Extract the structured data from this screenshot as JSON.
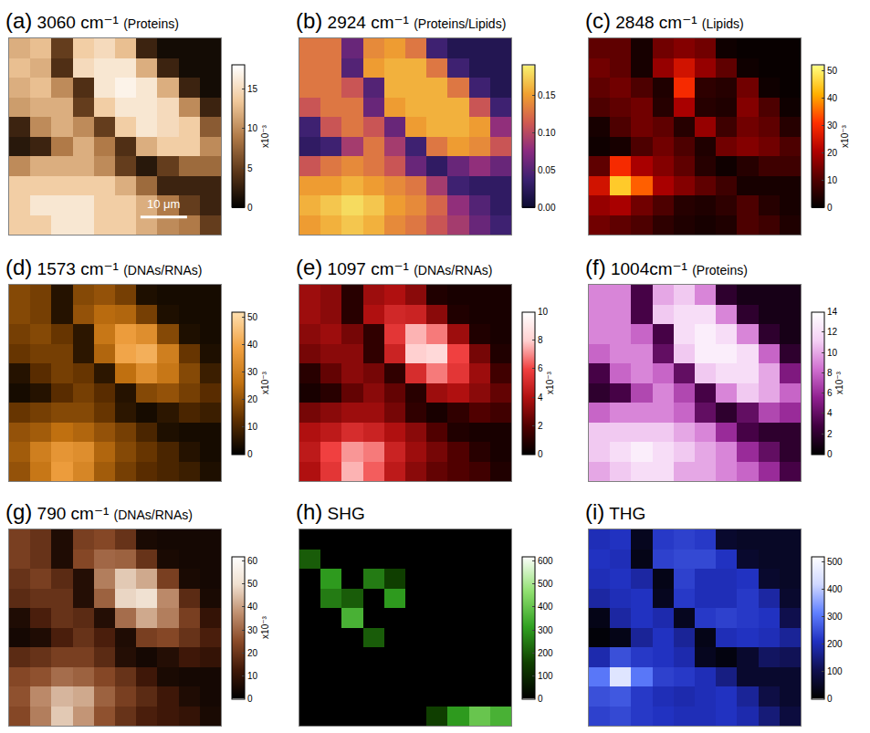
{
  "chart_data": [
    {
      "type": "heatmap",
      "label": "(a)",
      "title": "3060 cm⁻¹",
      "subtitle": "(Proteins)",
      "colorbar_title": "x10⁻³",
      "colorbar_range": [
        0,
        18
      ],
      "colorbar_ticks": [
        0,
        5,
        10,
        15
      ],
      "tick_labels": false,
      "color": [
        "#000000",
        "#5a3518",
        "#b07a48",
        "#f0c89a",
        "#ffffff"
      ],
      "annotations": [
        {
          "text": "10 μm"
        }
      ],
      "cells": [
        [
          12,
          13,
          5,
          14,
          15,
          13,
          3,
          1,
          1,
          1
        ],
        [
          13,
          12,
          4,
          15,
          16,
          16,
          12,
          3,
          1,
          1
        ],
        [
          12,
          13,
          10,
          4,
          16,
          17,
          16,
          12,
          3,
          1
        ],
        [
          11,
          12,
          12,
          5,
          14,
          16,
          16,
          15,
          10,
          3
        ],
        [
          3,
          10,
          12,
          10,
          5,
          14,
          16,
          15,
          14,
          7
        ],
        [
          2,
          3,
          9,
          12,
          9,
          4,
          12,
          14,
          14,
          10
        ],
        [
          10,
          12,
          12,
          12,
          10,
          5,
          2,
          5,
          8,
          8
        ],
        [
          14,
          14,
          14,
          14,
          14,
          12,
          8,
          3,
          3,
          3
        ],
        [
          14,
          16,
          16,
          16,
          14,
          14,
          12,
          9,
          5,
          3
        ],
        [
          14,
          14,
          16,
          16,
          14,
          14,
          12,
          10,
          9,
          5
        ]
      ]
    },
    {
      "type": "heatmap",
      "label": "(b)",
      "title": "2924 cm⁻¹",
      "subtitle": "(Proteins/Lipids)",
      "colorbar_range": [
        0,
        0.19
      ],
      "colorbar_ticks": [
        {
          "value": 0,
          "label": "0.00"
        },
        {
          "value": 0.05,
          "label": "0.05"
        },
        {
          "value": 0.1,
          "label": "0.10"
        },
        {
          "value": 0.15,
          "label": "0.15"
        }
      ],
      "tick_labels": false,
      "color": [
        "#0a0a30",
        "#3a2070",
        "#8a2a80",
        "#d05a50",
        "#f0a030",
        "#f8f070"
      ],
      "cells": [
        [
          0.13,
          0.13,
          0.06,
          0.14,
          0.15,
          0.13,
          0.04,
          0.02,
          0.02,
          0.02
        ],
        [
          0.13,
          0.13,
          0.05,
          0.15,
          0.16,
          0.16,
          0.13,
          0.04,
          0.02,
          0.02
        ],
        [
          0.13,
          0.13,
          0.11,
          0.05,
          0.16,
          0.16,
          0.16,
          0.13,
          0.04,
          0.02
        ],
        [
          0.11,
          0.13,
          0.13,
          0.06,
          0.15,
          0.16,
          0.16,
          0.16,
          0.11,
          0.04
        ],
        [
          0.04,
          0.11,
          0.13,
          0.11,
          0.06,
          0.15,
          0.16,
          0.16,
          0.15,
          0.08
        ],
        [
          0.03,
          0.04,
          0.09,
          0.13,
          0.09,
          0.04,
          0.13,
          0.15,
          0.14,
          0.11
        ],
        [
          0.11,
          0.13,
          0.14,
          0.13,
          0.11,
          0.06,
          0.03,
          0.06,
          0.08,
          0.06
        ],
        [
          0.15,
          0.15,
          0.16,
          0.15,
          0.14,
          0.13,
          0.09,
          0.04,
          0.03,
          0.03
        ],
        [
          0.16,
          0.17,
          0.18,
          0.17,
          0.15,
          0.14,
          0.12,
          0.08,
          0.05,
          0.03
        ],
        [
          0.15,
          0.16,
          0.17,
          0.16,
          0.14,
          0.13,
          0.11,
          0.09,
          0.06,
          0.04
        ]
      ]
    },
    {
      "type": "heatmap",
      "label": "(c)",
      "title": "2848 cm⁻¹",
      "subtitle": "(Lipids)",
      "colorbar_title": "x10⁻³",
      "colorbar_range": [
        0,
        52
      ],
      "colorbar_ticks": [
        0,
        10,
        20,
        30,
        40,
        50
      ],
      "tick_labels": false,
      "color": [
        "#000000",
        "#500000",
        "#b00000",
        "#ff3000",
        "#ffb000",
        "#ffff80"
      ],
      "cells": [
        [
          12,
          12,
          3,
          14,
          16,
          14,
          2,
          1,
          1,
          1
        ],
        [
          14,
          12,
          3,
          18,
          25,
          18,
          12,
          2,
          1,
          1
        ],
        [
          12,
          14,
          10,
          4,
          30,
          6,
          5,
          14,
          2,
          1
        ],
        [
          10,
          12,
          14,
          5,
          20,
          5,
          4,
          16,
          10,
          2
        ],
        [
          3,
          10,
          14,
          12,
          5,
          18,
          8,
          14,
          12,
          5
        ],
        [
          2,
          3,
          10,
          14,
          10,
          4,
          14,
          16,
          14,
          10
        ],
        [
          12,
          30,
          20,
          16,
          12,
          5,
          2,
          5,
          8,
          8
        ],
        [
          25,
          45,
          35,
          20,
          16,
          12,
          8,
          3,
          3,
          3
        ],
        [
          18,
          20,
          14,
          10,
          5,
          4,
          6,
          10,
          5,
          3
        ],
        [
          14,
          12,
          10,
          6,
          4,
          3,
          4,
          10,
          8,
          4
        ]
      ]
    },
    {
      "type": "heatmap",
      "label": "(d)",
      "title": "1573 cm⁻¹",
      "subtitle": "(DNAs/RNAs)",
      "colorbar_title": "x10⁻³",
      "colorbar_range": [
        0,
        52
      ],
      "colorbar_ticks": [
        0,
        10,
        20,
        30,
        40,
        50
      ],
      "tick_labels": false,
      "color": [
        "#000000",
        "#603000",
        "#c07010",
        "#f0a040",
        "#ffe0b0"
      ],
      "cells": [
        [
          18,
          16,
          5,
          18,
          20,
          16,
          4,
          3,
          3,
          3
        ],
        [
          18,
          16,
          5,
          20,
          25,
          24,
          16,
          4,
          3,
          3
        ],
        [
          16,
          18,
          14,
          6,
          28,
          38,
          34,
          18,
          4,
          3
        ],
        [
          14,
          16,
          16,
          6,
          24,
          40,
          42,
          30,
          14,
          4
        ],
        [
          5,
          12,
          16,
          14,
          6,
          26,
          34,
          28,
          18,
          8
        ],
        [
          3,
          5,
          12,
          16,
          12,
          5,
          18,
          20,
          16,
          12
        ],
        [
          14,
          16,
          18,
          18,
          14,
          6,
          3,
          6,
          10,
          8
        ],
        [
          20,
          22,
          26,
          24,
          20,
          16,
          10,
          4,
          3,
          3
        ],
        [
          22,
          30,
          36,
          34,
          24,
          18,
          14,
          10,
          5,
          3
        ],
        [
          20,
          28,
          38,
          32,
          22,
          16,
          12,
          10,
          8,
          4
        ]
      ]
    },
    {
      "type": "heatmap",
      "label": "(e)",
      "title": "1097 cm⁻¹",
      "subtitle": "(DNAs/RNAs)",
      "colorbar_title": "x10⁻³",
      "colorbar_range": [
        0,
        10
      ],
      "colorbar_ticks": [
        0,
        2,
        4,
        6,
        8,
        10
      ],
      "tick_labels": false,
      "color": [
        "#000000",
        "#500000",
        "#b01010",
        "#f04040",
        "#ffd0d0",
        "#ffffff"
      ],
      "cells": [
        [
          3.6,
          3.2,
          1.0,
          3.6,
          4.0,
          3.2,
          0.8,
          0.6,
          0.6,
          0.6
        ],
        [
          3.6,
          3.2,
          1.0,
          4.0,
          5.0,
          4.8,
          3.2,
          0.8,
          0.6,
          0.6
        ],
        [
          3.2,
          3.6,
          2.8,
          1.2,
          5.6,
          7.6,
          6.8,
          3.6,
          0.8,
          0.6
        ],
        [
          2.8,
          3.2,
          3.2,
          1.2,
          4.8,
          8.0,
          8.4,
          6.0,
          2.8,
          0.8
        ],
        [
          1.0,
          2.4,
          3.2,
          2.8,
          1.2,
          5.2,
          6.8,
          5.6,
          3.6,
          1.6
        ],
        [
          0.6,
          1.0,
          2.4,
          3.2,
          2.4,
          1.0,
          3.6,
          4.0,
          3.2,
          2.4
        ],
        [
          2.8,
          3.2,
          3.6,
          3.6,
          2.8,
          1.2,
          0.6,
          1.2,
          2.0,
          1.6
        ],
        [
          4.0,
          4.4,
          5.2,
          4.8,
          4.0,
          3.2,
          2.0,
          0.8,
          0.6,
          0.6
        ],
        [
          4.4,
          6.0,
          7.2,
          6.8,
          4.8,
          3.6,
          2.8,
          2.0,
          1.0,
          0.6
        ],
        [
          4.0,
          5.6,
          7.6,
          6.4,
          4.4,
          3.2,
          2.4,
          2.0,
          1.6,
          0.8
        ]
      ]
    },
    {
      "type": "heatmap",
      "label": "(f)",
      "title": "1004cm⁻¹",
      "subtitle": "(Proteins)",
      "colorbar_title": "x10⁻³",
      "colorbar_range": [
        0,
        14
      ],
      "colorbar_ticks": [
        0,
        2,
        4,
        6,
        8,
        10,
        12,
        14
      ],
      "tick_labels": false,
      "color": [
        "#000000",
        "#400040",
        "#902090",
        "#d070d0",
        "#f4d0f4",
        "#ffffff"
      ],
      "cells": [
        [
          9,
          9,
          3,
          10,
          11,
          9,
          2,
          1,
          1,
          1
        ],
        [
          9,
          9,
          3,
          11,
          12,
          12,
          9,
          2,
          1,
          1
        ],
        [
          9,
          9,
          8,
          3,
          12,
          13,
          12,
          9,
          2,
          1
        ],
        [
          8,
          9,
          9,
          4,
          11,
          13,
          13,
          12,
          8,
          2
        ],
        [
          3,
          8,
          9,
          8,
          4,
          11,
          12,
          12,
          10,
          5
        ],
        [
          2,
          3,
          7,
          9,
          7,
          3,
          9,
          11,
          10,
          8
        ],
        [
          8,
          9,
          9,
          9,
          8,
          4,
          2,
          4,
          7,
          6
        ],
        [
          11,
          11,
          11,
          11,
          10,
          9,
          6,
          3,
          2,
          2
        ],
        [
          11,
          12,
          13,
          12,
          11,
          10,
          9,
          6,
          4,
          2
        ],
        [
          10,
          11,
          12,
          12,
          10,
          10,
          9,
          8,
          6,
          3
        ]
      ]
    },
    {
      "type": "heatmap",
      "label": "(g)",
      "title": "790 cm⁻¹",
      "subtitle": "(DNAs/RNAs)",
      "colorbar_title": "x10⁻³",
      "colorbar_range": [
        0,
        62
      ],
      "colorbar_ticks": [
        0,
        10,
        20,
        30,
        40,
        50,
        60
      ],
      "tick_labels": false,
      "color": [
        "#000000",
        "#401808",
        "#8a4a28",
        "#c09070",
        "#f0e0d0",
        "#ffffff"
      ],
      "cells": [
        [
          22,
          19,
          6,
          22,
          24,
          19,
          5,
          4,
          4,
          4
        ],
        [
          22,
          19,
          6,
          24,
          30,
          29,
          19,
          5,
          4,
          4
        ],
        [
          19,
          22,
          17,
          7,
          34,
          46,
          41,
          22,
          5,
          4
        ],
        [
          17,
          19,
          19,
          7,
          29,
          48,
          50,
          36,
          17,
          5
        ],
        [
          6,
          14,
          19,
          17,
          7,
          31,
          41,
          34,
          22,
          10
        ],
        [
          4,
          6,
          14,
          19,
          14,
          6,
          22,
          24,
          19,
          14
        ],
        [
          17,
          19,
          22,
          22,
          17,
          7,
          4,
          7,
          12,
          10
        ],
        [
          24,
          26,
          31,
          29,
          24,
          19,
          12,
          5,
          4,
          4
        ],
        [
          26,
          36,
          43,
          41,
          29,
          22,
          17,
          12,
          6,
          4
        ],
        [
          24,
          34,
          46,
          38,
          26,
          19,
          14,
          12,
          10,
          5
        ]
      ]
    },
    {
      "type": "heatmap",
      "label": "(h)",
      "title": "SHG",
      "colorbar_range": [
        0,
        620
      ],
      "colorbar_ticks": [
        0,
        100,
        200,
        300,
        400,
        500,
        600
      ],
      "tick_labels": false,
      "color": [
        "#000000",
        "#104000",
        "#30a020",
        "#90e070",
        "#ffffff"
      ],
      "cells": [
        [
          0,
          0,
          0,
          0,
          0,
          0,
          0,
          0,
          0,
          0
        ],
        [
          200,
          0,
          0,
          0,
          0,
          0,
          0,
          0,
          0,
          0
        ],
        [
          0,
          300,
          0,
          250,
          150,
          0,
          0,
          0,
          0,
          0
        ],
        [
          0,
          250,
          200,
          0,
          300,
          0,
          0,
          0,
          0,
          0
        ],
        [
          0,
          0,
          350,
          0,
          0,
          0,
          0,
          0,
          0,
          0
        ],
        [
          0,
          0,
          0,
          200,
          0,
          0,
          0,
          0,
          0,
          0
        ],
        [
          0,
          0,
          0,
          0,
          0,
          0,
          0,
          0,
          0,
          0
        ],
        [
          0,
          0,
          0,
          0,
          0,
          0,
          0,
          0,
          0,
          0
        ],
        [
          0,
          0,
          0,
          0,
          0,
          0,
          0,
          0,
          0,
          0
        ],
        [
          0,
          0,
          0,
          0,
          0,
          0,
          150,
          300,
          400,
          350
        ]
      ]
    },
    {
      "type": "heatmap",
      "label": "(i)",
      "title": "THG",
      "colorbar_range": [
        0,
        520
      ],
      "colorbar_ticks": [
        0,
        100,
        200,
        300,
        400,
        500
      ],
      "tick_labels": false,
      "color": [
        "#000000",
        "#101050",
        "#2030c0",
        "#6080ff",
        "#d0d8ff",
        "#ffffff"
      ],
      "cells": [
        [
          200,
          210,
          40,
          220,
          230,
          220,
          60,
          50,
          50,
          50
        ],
        [
          210,
          200,
          30,
          230,
          240,
          240,
          210,
          60,
          50,
          50
        ],
        [
          200,
          210,
          180,
          30,
          230,
          200,
          200,
          210,
          60,
          50
        ],
        [
          180,
          200,
          210,
          40,
          220,
          200,
          200,
          220,
          180,
          60
        ],
        [
          30,
          180,
          210,
          190,
          40,
          220,
          230,
          220,
          210,
          100
        ],
        [
          10,
          30,
          170,
          210,
          170,
          30,
          200,
          210,
          200,
          170
        ],
        [
          190,
          250,
          220,
          210,
          190,
          40,
          20,
          60,
          120,
          110
        ],
        [
          300,
          450,
          300,
          230,
          220,
          200,
          150,
          60,
          60,
          60
        ],
        [
          250,
          260,
          220,
          200,
          190,
          200,
          210,
          170,
          90,
          60
        ],
        [
          230,
          240,
          220,
          210,
          200,
          200,
          210,
          190,
          140,
          80
        ]
      ]
    }
  ]
}
